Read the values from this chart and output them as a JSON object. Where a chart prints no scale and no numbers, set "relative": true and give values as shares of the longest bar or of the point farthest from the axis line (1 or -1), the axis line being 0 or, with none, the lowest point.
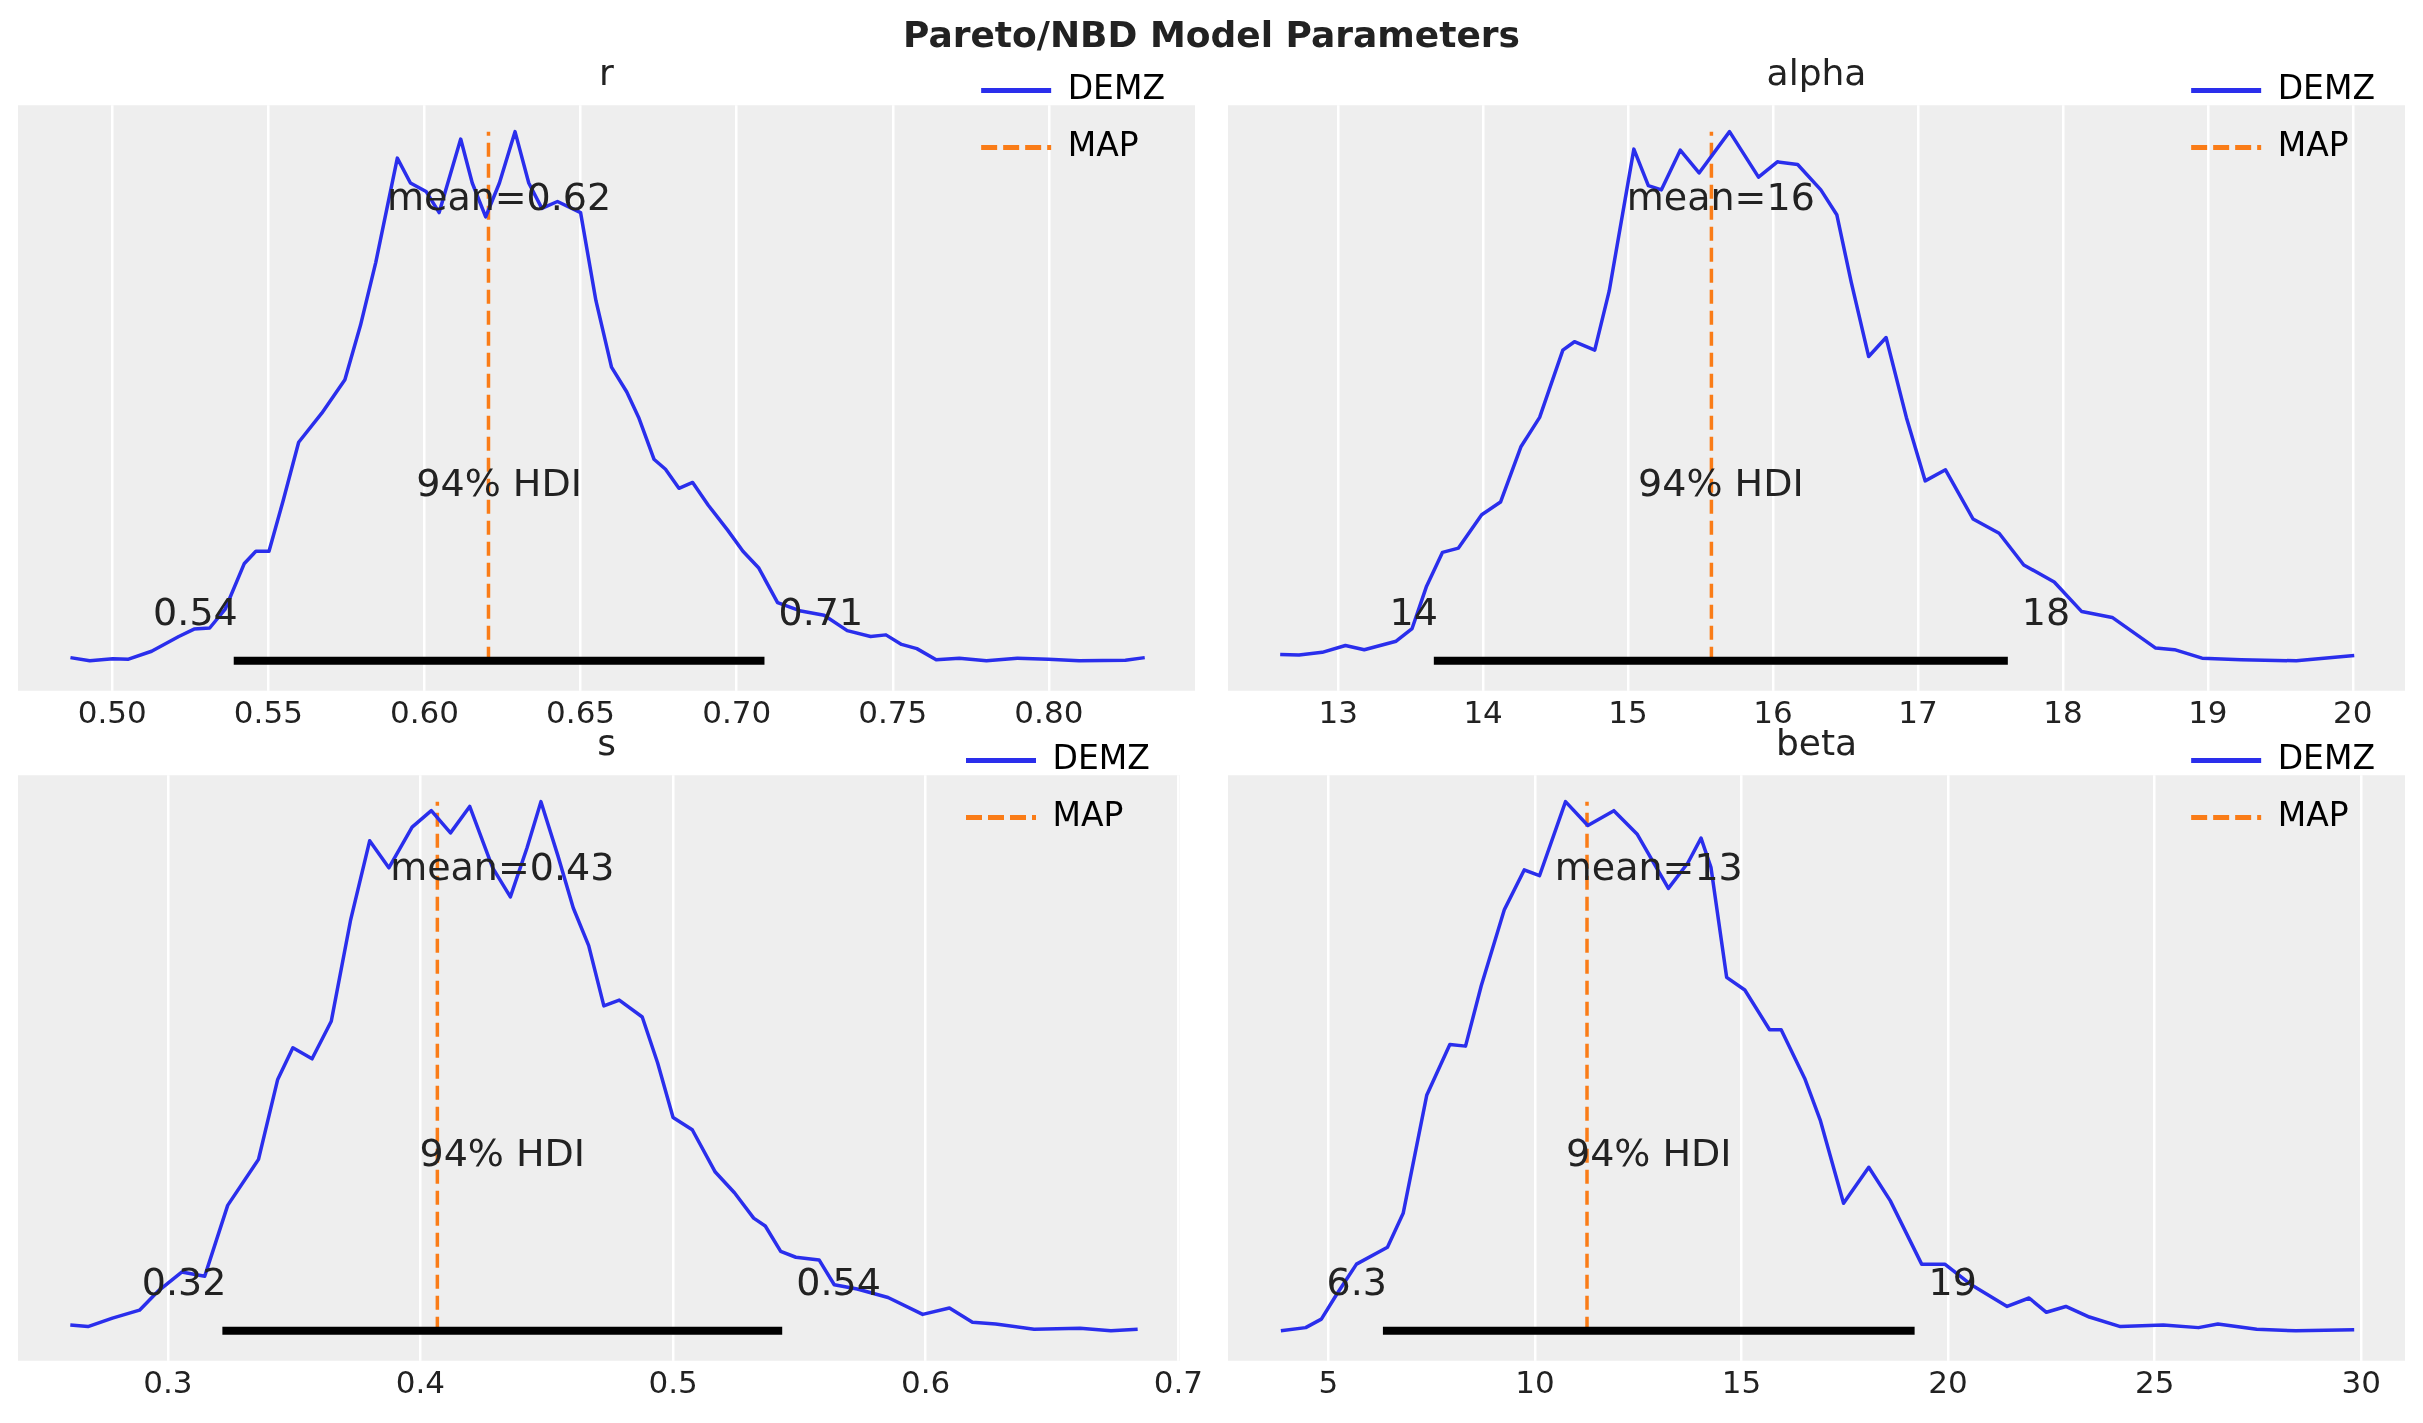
{
  "chart_data": [
    {
      "type": "other",
      "title": "Pareto/NBD Model Parameters"
    },
    {
      "type": "line",
      "title": "r",
      "relative": true,
      "grid": "x",
      "legend": "top right",
      "tick_labels": "x",
      "xlim": [
        0.4698,
        0.8468
      ],
      "xticks": [
        {
          "value": 0.5,
          "label": "0.50"
        },
        {
          "value": 0.55,
          "label": "0.55"
        },
        {
          "value": 0.6,
          "label": "0.60"
        },
        {
          "value": 0.65,
          "label": "0.65"
        },
        {
          "value": 0.7,
          "label": "0.70"
        },
        {
          "value": 0.75,
          "label": "0.75"
        },
        {
          "value": 0.8,
          "label": "0.80"
        }
      ],
      "series": [
        {
          "name": "DEMZ",
          "color": "#2a2eec",
          "x": [
            0.4866,
            0.4928,
            0.5002,
            0.5052,
            0.5126,
            0.5213,
            0.5262,
            0.5312,
            0.5361,
            0.5423,
            0.546,
            0.5502,
            0.5547,
            0.5597,
            0.5671,
            0.5745,
            0.5795,
            0.5844,
            0.5913,
            0.5955,
            0.6005,
            0.6047,
            0.6116,
            0.6153,
            0.6196,
            0.624,
            0.629,
            0.6334,
            0.6376,
            0.6426,
            0.65,
            0.6549,
            0.6599,
            0.6648,
            0.6686,
            0.6735,
            0.6772,
            0.6815,
            0.6859,
            0.6909,
            0.6971,
            0.702,
            0.707,
            0.7131,
            0.7206,
            0.728,
            0.7354,
            0.7429,
            0.7478,
            0.7528,
            0.7577,
            0.7639,
            0.7713,
            0.78,
            0.7899,
            0.7998,
            0.8097,
            0.8245,
            0.8307
          ],
          "values": [
            0.006,
            0,
            0.004,
            0.003,
            0.018,
            0.046,
            0.06,
            0.062,
            0.097,
            0.184,
            0.207,
            0.207,
            0.302,
            0.413,
            0.468,
            0.531,
            0.634,
            0.753,
            0.95,
            0.903,
            0.887,
            0.847,
            0.986,
            0.903,
            0.839,
            0.903,
            1,
            0.903,
            0.855,
            0.868,
            0.847,
            0.681,
            0.555,
            0.508,
            0.46,
            0.381,
            0.362,
            0.326,
            0.337,
            0.294,
            0.247,
            0.207,
            0.176,
            0.11,
            0.094,
            0.086,
            0.057,
            0.046,
            0.049,
            0.031,
            0.023,
            0.002,
            0.005,
            0,
            0.005,
            0.003,
            0,
            0.001,
            0.006
          ]
        },
        {
          "type": "line",
          "color": "#000000",
          "x": [
            0.5389,
            0.7089
          ],
          "values": [
            0,
            0
          ]
        },
        {
          "name": "MAP",
          "type": "line",
          "color": "#fa7c17",
          "line_style": "dashed",
          "x": [
            0.6205,
            0.6205
          ],
          "values": [
            0,
            1
          ]
        }
      ],
      "annotations": [
        {
          "text": "0.54",
          "x": 0.5389,
          "y": 0
        },
        {
          "text": "0.71",
          "x": 0.7089,
          "y": 0
        },
        "mean=0.62",
        "94% HDI"
      ]
    },
    {
      "type": "line",
      "title": "alpha",
      "relative": true,
      "grid": "x",
      "legend": "top right",
      "tick_labels": "x",
      "xlim": [
        12.24,
        20.36
      ],
      "xticks": [
        13,
        14,
        15,
        16,
        17,
        18,
        19,
        20
      ],
      "series": [
        {
          "name": "DEMZ",
          "color": "#2a2eec",
          "x": [
            12.6,
            12.73,
            12.89,
            13.05,
            13.18,
            13.4,
            13.51,
            13.61,
            13.72,
            13.83,
            13.99,
            14.12,
            14.26,
            14.39,
            14.55,
            14.63,
            14.77,
            14.87,
            15.04,
            15.14,
            15.23,
            15.36,
            15.49,
            15.7,
            15.9,
            16.03,
            16.17,
            16.33,
            16.44,
            16.54,
            16.66,
            16.78,
            16.92,
            17.05,
            17.19,
            17.38,
            17.56,
            17.73,
            17.94,
            18.13,
            18.34,
            18.64,
            18.77,
            18.96,
            19.23,
            19.61,
            20.01
          ],
          "values": [
            0.012,
            0.011,
            0.016,
            0.029,
            0.021,
            0.037,
            0.061,
            0.141,
            0.205,
            0.213,
            0.276,
            0.3,
            0.404,
            0.46,
            0.587,
            0.603,
            0.587,
            0.699,
            0.967,
            0.898,
            0.89,
            0.965,
            0.922,
            1,
            0.914,
            0.943,
            0.938,
            0.89,
            0.843,
            0.715,
            0.575,
            0.611,
            0.46,
            0.34,
            0.361,
            0.268,
            0.241,
            0.181,
            0.149,
            0.093,
            0.082,
            0.024,
            0.021,
            0.005,
            0.002,
            0,
            0.01
          ]
        },
        {
          "type": "line",
          "color": "#000000",
          "x": [
            13.66,
            17.62
          ],
          "values": [
            0,
            0
          ]
        },
        {
          "name": "MAP",
          "type": "line",
          "color": "#fa7c17",
          "line_style": "dashed",
          "x": [
            15.575,
            15.575
          ],
          "values": [
            0,
            1
          ]
        }
      ],
      "annotations": [
        {
          "text": "14",
          "x": 13.66,
          "y": 0
        },
        {
          "text": "18",
          "x": 17.62,
          "y": 0
        },
        "mean=16",
        "94% HDI"
      ]
    },
    {
      "type": "line",
      "title": "s",
      "relative": true,
      "grid": "x",
      "legend": "top right",
      "tick_labels": "x",
      "xlim": [
        0.2407,
        0.7006
      ],
      "xticks": [
        0.3,
        0.4,
        0.5,
        0.6,
        0.7
      ],
      "series": [
        {
          "name": "DEMZ",
          "color": "#2a2eec",
          "x": [
            0.2614,
            0.2684,
            0.2781,
            0.2888,
            0.2964,
            0.3055,
            0.3146,
            0.3237,
            0.3359,
            0.3435,
            0.3495,
            0.3571,
            0.3647,
            0.3723,
            0.3799,
            0.3875,
            0.3967,
            0.4043,
            0.4119,
            0.4195,
            0.4286,
            0.4356,
            0.4422,
            0.4477,
            0.4544,
            0.4605,
            0.4666,
            0.4726,
            0.4787,
            0.4878,
            0.4939,
            0.5,
            0.5076,
            0.5167,
            0.5243,
            0.5319,
            0.5365,
            0.5426,
            0.5486,
            0.5578,
            0.5638,
            0.5729,
            0.5851,
            0.5988,
            0.6094,
            0.6185,
            0.6277,
            0.6429,
            0.6611,
            0.6733,
            0.6839
          ],
          "values": [
            0.011,
            0.008,
            0.024,
            0.039,
            0.076,
            0.111,
            0.103,
            0.237,
            0.324,
            0.475,
            0.535,
            0.514,
            0.585,
            0.775,
            0.926,
            0.875,
            0.952,
            0.983,
            0.941,
            0.991,
            0.875,
            0.82,
            0.913,
            1,
            0.898,
            0.799,
            0.728,
            0.614,
            0.625,
            0.593,
            0.506,
            0.403,
            0.38,
            0.3,
            0.261,
            0.213,
            0.198,
            0.15,
            0.139,
            0.134,
            0.087,
            0.079,
            0.063,
            0.031,
            0.043,
            0.016,
            0.013,
            0.003,
            0.005,
            0,
            0.003
          ]
        },
        {
          "type": "line",
          "color": "#000000",
          "x": [
            0.3216,
            0.5432
          ],
          "values": [
            0,
            0
          ]
        },
        {
          "name": "MAP",
          "type": "line",
          "color": "#fa7c17",
          "line_style": "dashed",
          "x": [
            0.4067,
            0.4067
          ],
          "values": [
            0,
            1
          ]
        }
      ],
      "annotations": [
        {
          "text": "0.32",
          "x": 0.3216,
          "y": 0
        },
        {
          "text": "0.54",
          "x": 0.5432,
          "y": 0
        },
        "mean=0.43",
        "94% HDI"
      ]
    },
    {
      "type": "line",
      "title": "beta",
      "relative": true,
      "grid": "x",
      "legend": "top right",
      "tick_labels": "x",
      "xlim": [
        2.57,
        31.06
      ],
      "xticks": [
        5,
        10,
        15,
        20,
        25,
        30
      ],
      "series": [
        {
          "name": "DEMZ",
          "color": "#2a2eec",
          "x": [
            3.85,
            4.45,
            4.83,
            5.21,
            5.68,
            6.43,
            6.81,
            7.38,
            7.94,
            8.32,
            8.7,
            9.26,
            9.74,
            10.11,
            10.74,
            11.28,
            11.91,
            12.47,
            13.23,
            13.7,
            14.02,
            14.26,
            14.64,
            15.08,
            15.68,
            15.96,
            16.53,
            16.91,
            17.47,
            18.08,
            18.6,
            19.36,
            19.92,
            20.58,
            21.43,
            21.96,
            22.38,
            22.85,
            23.42,
            24.17,
            25.21,
            26.06,
            26.53,
            27.47,
            28.42,
            29.83
          ],
          "values": [
            0,
            0.006,
            0.022,
            0.07,
            0.126,
            0.158,
            0.222,
            0.445,
            0.541,
            0.538,
            0.652,
            0.796,
            0.871,
            0.86,
            1,
            0.955,
            0.983,
            0.939,
            0.836,
            0.884,
            0.931,
            0.876,
            0.668,
            0.644,
            0.569,
            0.569,
            0.477,
            0.397,
            0.241,
            0.309,
            0.246,
            0.126,
            0.126,
            0.086,
            0.046,
            0.062,
            0.035,
            0.046,
            0.026,
            0.008,
            0.011,
            0.006,
            0.013,
            0.003,
            0,
            0.002
          ]
        },
        {
          "type": "line",
          "color": "#000000",
          "x": [
            6.32,
            19.19
          ],
          "values": [
            0,
            0
          ]
        },
        {
          "name": "MAP",
          "type": "line",
          "color": "#fa7c17",
          "line_style": "dashed",
          "x": [
            11.26,
            11.26
          ],
          "values": [
            0,
            1
          ]
        }
      ],
      "annotations": [
        {
          "text": "6.3",
          "x": 6.32,
          "y": 0
        },
        {
          "text": "19",
          "x": 19.19,
          "y": 0
        },
        "mean=13",
        "94% HDI"
      ]
    }
  ]
}
